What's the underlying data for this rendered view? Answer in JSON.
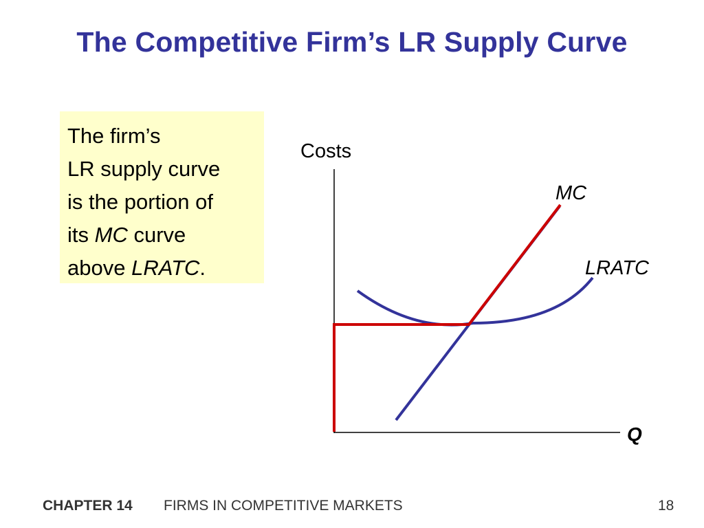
{
  "slide": {
    "title": "The Competitive Firm’s LR Supply Curve"
  },
  "callout": {
    "line1": "The firm’s",
    "line2": "LR supply curve",
    "line3": "is the portion of",
    "line4_pre": "its ",
    "line4_em": "MC",
    "line4_post": " curve",
    "line5_pre": "above ",
    "line5_em": "LRATC",
    "line5_post": "."
  },
  "diagram": {
    "y_axis_label": "Costs",
    "x_axis_label": "Q",
    "curves": [
      {
        "name": "MC",
        "color": "#33339a"
      },
      {
        "name": "LRATC",
        "color": "#33339a"
      }
    ],
    "supply_curve_color": "#cc0000"
  },
  "footer": {
    "chapter": "CHAPTER 14",
    "title": "FIRMS IN COMPETITIVE MARKETS",
    "page": "18"
  }
}
